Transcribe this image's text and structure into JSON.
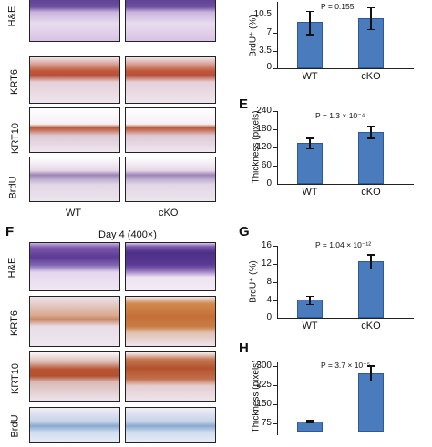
{
  "top_figure": {
    "row_labels": [
      "H&E",
      "KRT6",
      "KRT10",
      "BrdU"
    ],
    "column_labels": [
      "WT",
      "cKO"
    ]
  },
  "panel_F": {
    "letter": "F",
    "title": "Day 4 (400×)",
    "row_labels": [
      "H&E",
      "KRT6",
      "KRT10",
      "BrdU"
    ]
  },
  "chart_D": {
    "ylabel": "BrdU⁺ (%)",
    "pvalue": "P = 0.155",
    "yticks": [
      "10.5",
      "7",
      "3.5",
      "0"
    ],
    "categories": [
      "WT",
      "cKO"
    ]
  },
  "chart_E": {
    "letter": "E",
    "ylabel": "Thickness (pixels)",
    "pvalue": "P = 1.3 × 10⁻⁴",
    "yticks": [
      "240",
      "180",
      "120",
      "60",
      "0"
    ],
    "categories": [
      "WT",
      "cKO"
    ]
  },
  "chart_G": {
    "letter": "G",
    "ylabel": "BrdU⁺ (%)",
    "pvalue": "P = 1.04 × 10⁻¹²",
    "yticks": [
      "16",
      "12",
      "8",
      "4",
      "0"
    ],
    "categories": [
      "WT",
      "cKO"
    ]
  },
  "chart_H": {
    "letter": "H",
    "ylabel": "Thickness (pixels)",
    "pvalue": "P = 3.7 × 10⁻⁵",
    "yticks": [
      "300",
      "225",
      "150",
      "75"
    ]
  },
  "chart_data": [
    {
      "type": "bar",
      "categories": [
        "WT",
        "cKO"
      ],
      "values": [
        9.0,
        9.8
      ],
      "errors": [
        2.3,
        2.2
      ],
      "ylabel": "BrdU⁺ (%)",
      "ylim": [
        0,
        14
      ]
    },
    {
      "type": "bar",
      "categories": [
        "WT",
        "cKO"
      ],
      "values": [
        135,
        172
      ],
      "errors": [
        17,
        20
      ],
      "ylabel": "Thickness (pixels)",
      "ylim": [
        0,
        240
      ]
    },
    {
      "type": "bar",
      "categories": [
        "WT",
        "cKO"
      ],
      "values": [
        4.0,
        12.5
      ],
      "errors": [
        0.9,
        1.6
      ],
      "ylabel": "BrdU⁺ (%)",
      "ylim": [
        0,
        16
      ]
    },
    {
      "type": "bar",
      "categories": [
        "WT",
        "cKO"
      ],
      "values": [
        83,
        272
      ],
      "errors": [
        5,
        30
      ],
      "ylabel": "Thickness (pixels)",
      "ylim": [
        0,
        300
      ]
    }
  ]
}
